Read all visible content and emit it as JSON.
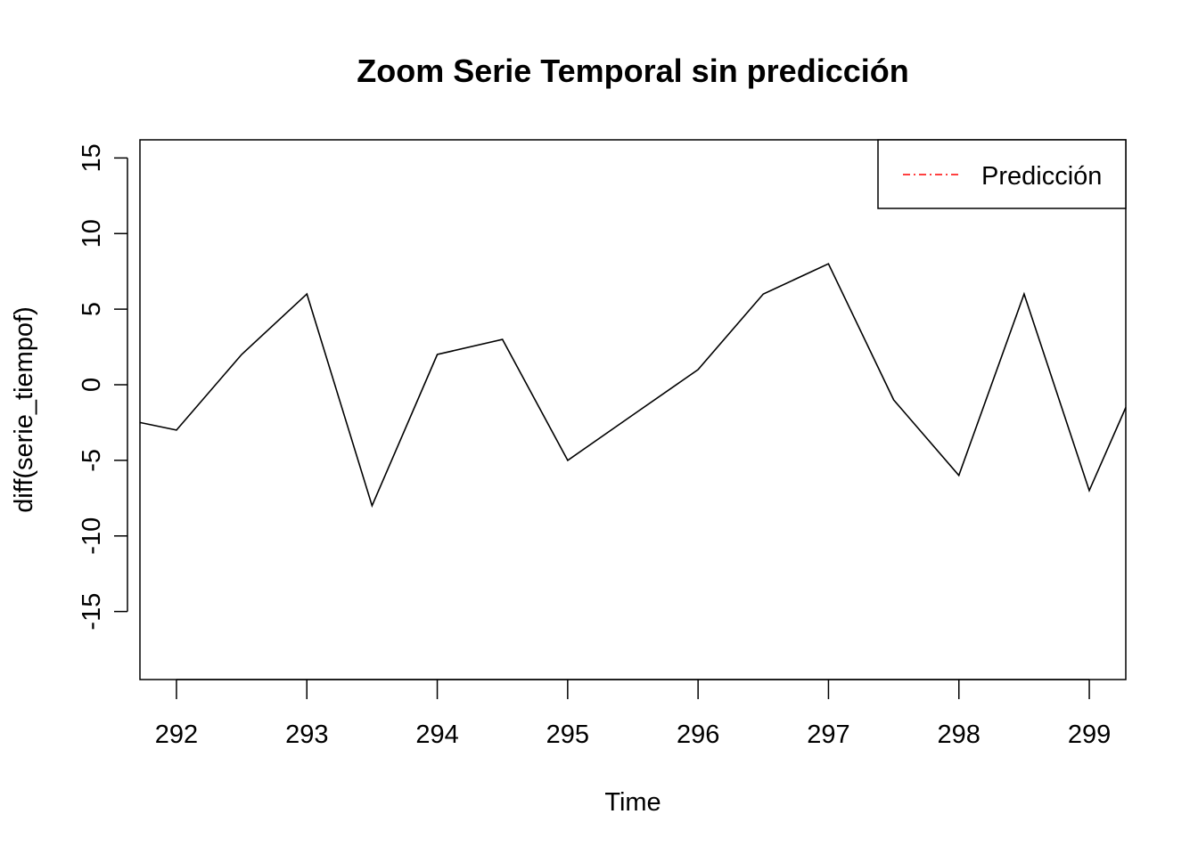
{
  "chart_data": {
    "type": "line",
    "title": "Zoom Serie Temporal sin predicción",
    "xlabel": "Time",
    "ylabel": "diff(serie_tiempof)",
    "xlim": [
      291.72,
      299.28
    ],
    "ylim": [
      -19.5,
      16.2
    ],
    "x_ticks": [
      292,
      293,
      294,
      295,
      296,
      297,
      298,
      299
    ],
    "y_ticks": [
      -15,
      -10,
      -5,
      0,
      5,
      10,
      15
    ],
    "x_tick_labels": [
      "292",
      "293",
      "294",
      "295",
      "296",
      "297",
      "298",
      "299"
    ],
    "y_tick_labels": [
      "-15",
      "-10",
      "-5",
      "0",
      "5",
      "10",
      "15"
    ],
    "series": [
      {
        "color": "#000000",
        "x": [
          291.72,
          292.0,
          292.5,
          293.0,
          293.5,
          294.0,
          294.5,
          295.0,
          295.5,
          296.0,
          296.5,
          297.0,
          297.5,
          298.0,
          298.5,
          299.0,
          299.28
        ],
        "y": [
          -2.5,
          -3,
          2,
          6,
          -8,
          2,
          3,
          -5,
          -2,
          1,
          6,
          8,
          -1,
          -6,
          6,
          -7,
          -1.5
        ]
      }
    ],
    "legend": {
      "position": "top-right",
      "entries": [
        {
          "label": "Predicción",
          "color": "#ff0000",
          "line_style": "dot-dash"
        }
      ]
    },
    "grid": false
  }
}
